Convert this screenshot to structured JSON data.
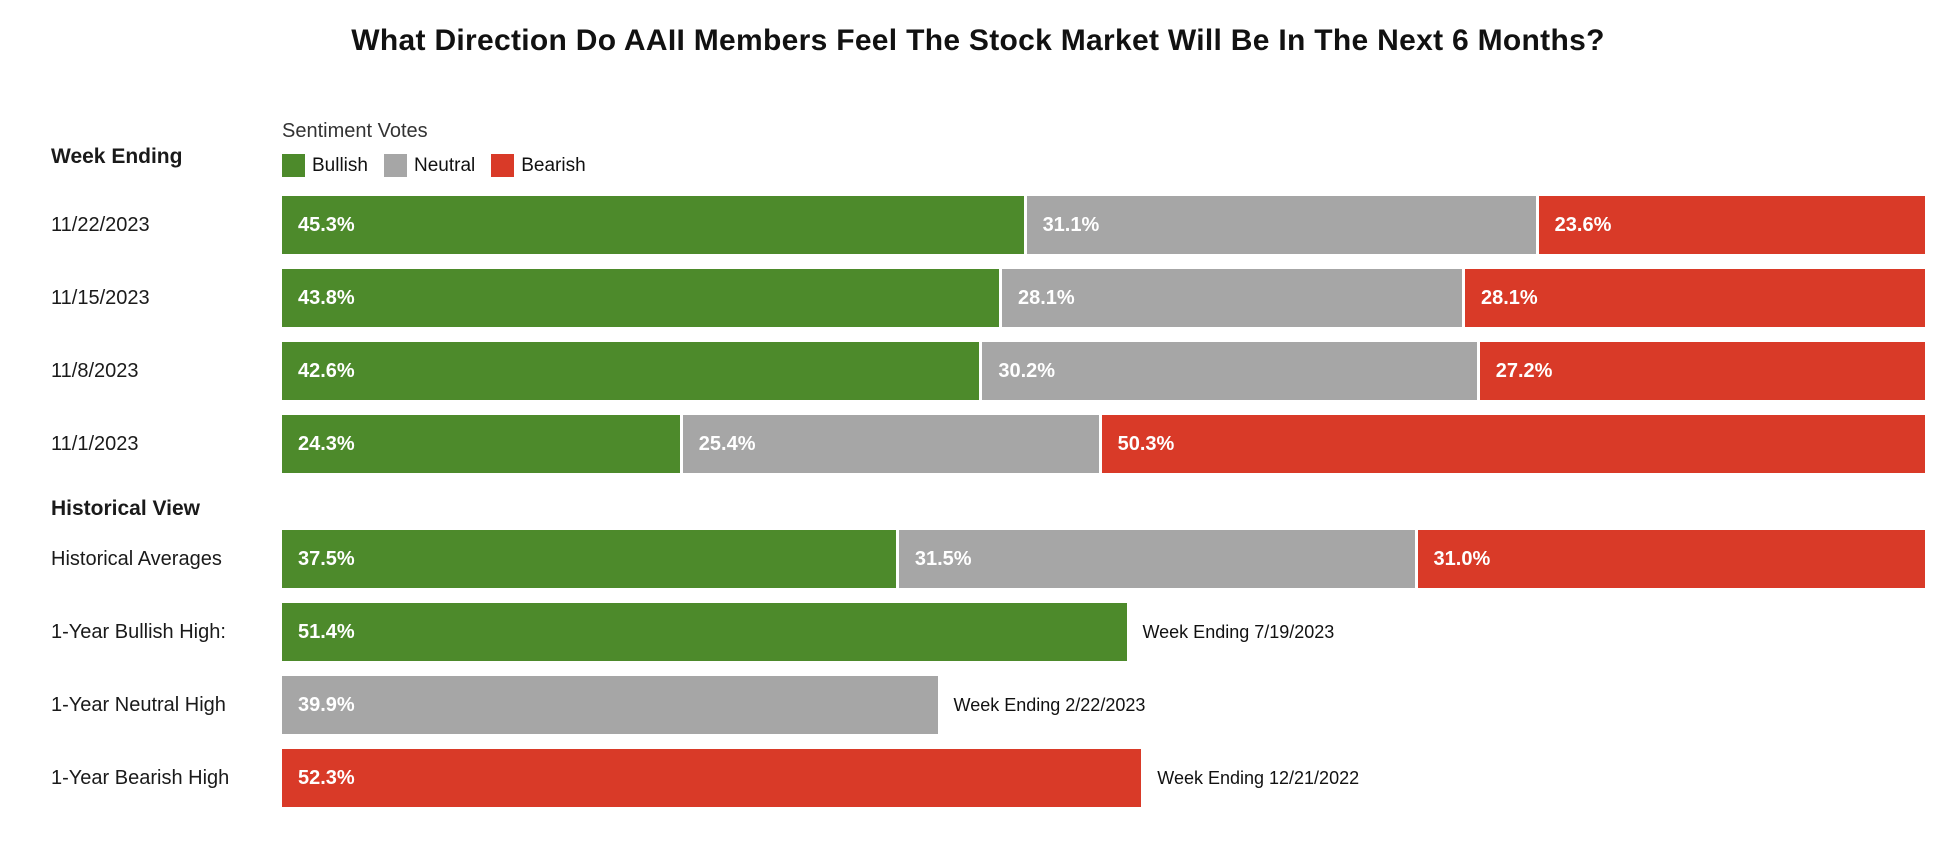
{
  "title": "What Direction Do AAII Members Feel The Stock Market Will Be In The Next 6 Months?",
  "legend": {
    "heading": "Sentiment Votes",
    "items": [
      {
        "label": "Bullish",
        "color": "#4d8a2b"
      },
      {
        "label": "Neutral",
        "color": "#a6a6a6"
      },
      {
        "label": "Bearish",
        "color": "#d93a28"
      }
    ]
  },
  "row_headers": {
    "weekly": "Week Ending",
    "historical": "Historical View"
  },
  "chart_data": {
    "type": "bar",
    "variant": "horizontal-stacked",
    "title": "What Direction Do AAII Members Feel The Stock Market Will Be In The Next 6 Months?",
    "series": [
      "Bullish",
      "Neutral",
      "Bearish"
    ],
    "colors": {
      "bullish": "#4d8a2b",
      "neutral": "#a6a6a6",
      "bearish": "#d93a28"
    },
    "x_axis": {
      "min": 0,
      "max": 100,
      "unit": "%"
    },
    "legend_position": "top",
    "grid": false,
    "weekly": [
      {
        "label": "11/22/2023",
        "segments": [
          {
            "series": "Bullish",
            "value": 45.3,
            "display": "45.3%"
          },
          {
            "series": "Neutral",
            "value": 31.1,
            "display": "31.1%"
          },
          {
            "series": "Bearish",
            "value": 23.6,
            "display": "23.6%"
          }
        ]
      },
      {
        "label": "11/15/2023",
        "segments": [
          {
            "series": "Bullish",
            "value": 43.8,
            "display": "43.8%"
          },
          {
            "series": "Neutral",
            "value": 28.1,
            "display": "28.1%"
          },
          {
            "series": "Bearish",
            "value": 28.1,
            "display": "28.1%"
          }
        ]
      },
      {
        "label": "11/8/2023",
        "segments": [
          {
            "series": "Bullish",
            "value": 42.6,
            "display": "42.6%"
          },
          {
            "series": "Neutral",
            "value": 30.2,
            "display": "30.2%"
          },
          {
            "series": "Bearish",
            "value": 27.2,
            "display": "27.2%"
          }
        ]
      },
      {
        "label": "11/1/2023",
        "segments": [
          {
            "series": "Bullish",
            "value": 24.3,
            "display": "24.3%"
          },
          {
            "series": "Neutral",
            "value": 25.4,
            "display": "25.4%"
          },
          {
            "series": "Bearish",
            "value": 50.3,
            "display": "50.3%"
          }
        ]
      }
    ],
    "historical_averages": {
      "label": "Historical Averages",
      "segments": [
        {
          "series": "Bullish",
          "value": 37.5,
          "display": "37.5%"
        },
        {
          "series": "Neutral",
          "value": 31.5,
          "display": "31.5%"
        },
        {
          "series": "Bearish",
          "value": 31.0,
          "display": "31.0%"
        }
      ]
    },
    "extremes": [
      {
        "label": "1-Year Bullish High:",
        "series": "Bullish",
        "value": 51.4,
        "display": "51.4%",
        "annotation": "Week Ending 7/19/2023"
      },
      {
        "label": "1-Year Neutral High",
        "series": "Neutral",
        "value": 39.9,
        "display": "39.9%",
        "annotation": "Week Ending 2/22/2023"
      },
      {
        "label": "1-Year Bearish High",
        "series": "Bearish",
        "value": 52.3,
        "display": "52.3%",
        "annotation": "Week Ending 12/21/2022"
      }
    ]
  }
}
